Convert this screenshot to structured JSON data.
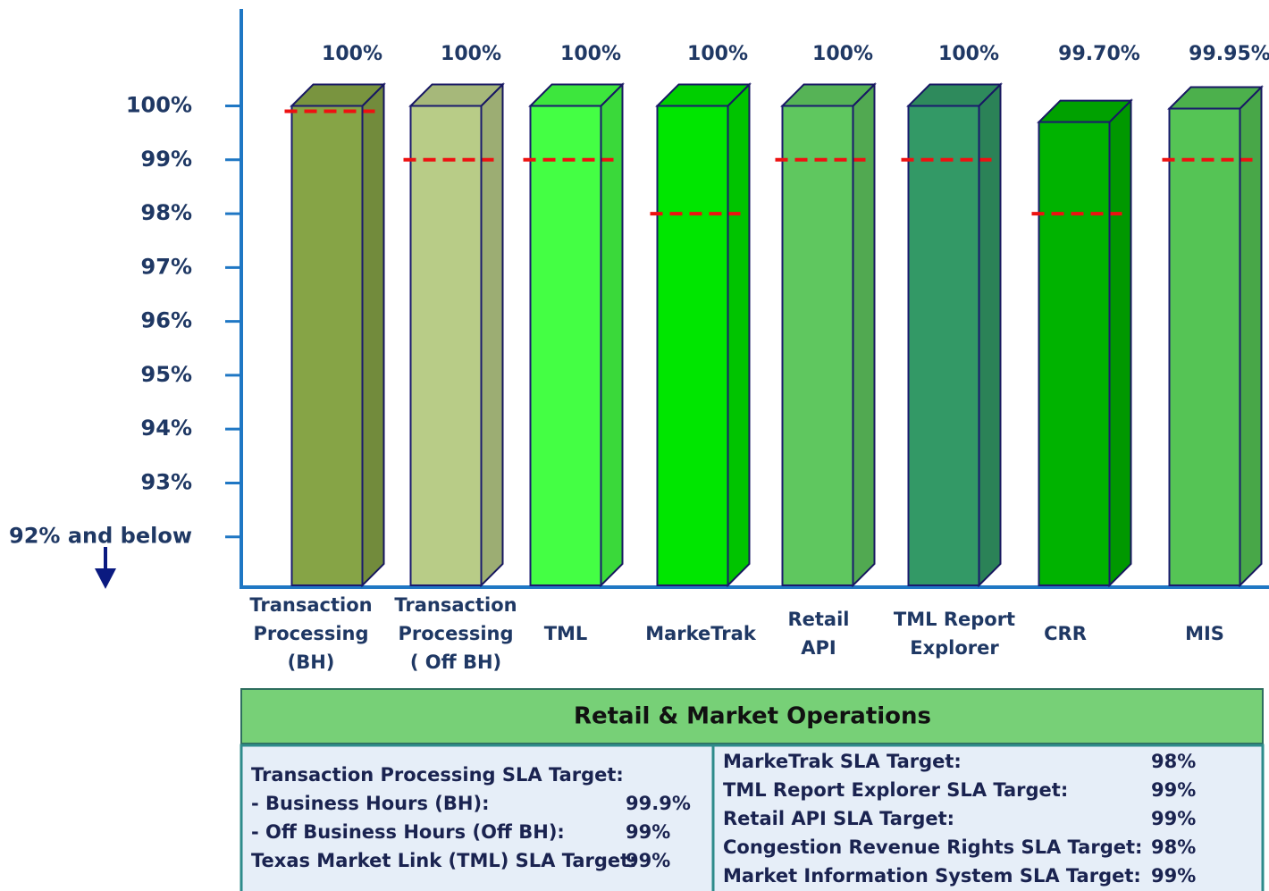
{
  "chart_data": {
    "type": "bar",
    "categories": [
      "Transaction\nProcessing\n(BH)",
      "Transaction\nProcessing\n( Off BH)",
      "TML",
      "MarkeTrak",
      "Retail\nAPI",
      "TML Report\nExplorer",
      "CRR",
      "MIS"
    ],
    "values": [
      100,
      100,
      100,
      100,
      100,
      100,
      99.7,
      99.95
    ],
    "value_labels": [
      "100%",
      "100%",
      "100%",
      "100%",
      "100%",
      "100%",
      "99.70%",
      "99.95%"
    ],
    "targets": [
      99.9,
      99,
      99,
      98,
      99,
      99,
      98,
      99
    ],
    "colors": [
      "#86a446",
      "#b8cc87",
      "#44ff44",
      "#00e600",
      "#5fc75f",
      "#339966",
      "#00b300",
      "#55c455"
    ],
    "target_color": "#ee1111",
    "ylim": [
      91.1,
      101.8
    ],
    "yticks": [
      {
        "value": 92,
        "label": "92% and below"
      },
      {
        "value": 93,
        "label": "93%"
      },
      {
        "value": 94,
        "label": "94%"
      },
      {
        "value": 95,
        "label": "95%"
      },
      {
        "value": 96,
        "label": "96%"
      },
      {
        "value": 97,
        "label": "97%"
      },
      {
        "value": 98,
        "label": "98%"
      },
      {
        "value": 99,
        "label": "99%"
      },
      {
        "value": 100,
        "label": "100%"
      }
    ]
  },
  "table": {
    "title": "Retail & Market Operations",
    "left": [
      [
        "Transaction Processing SLA Target:"
      ],
      [
        "-  Business Hours (BH):",
        "99.9%"
      ],
      [
        "-  Off Business Hours (Off BH):",
        "99%"
      ],
      [
        "Texas Market Link (TML) SLA Target:",
        "99%"
      ]
    ],
    "right": [
      [
        "MarkeTrak SLA Target:",
        "98%"
      ],
      [
        "TML Report Explorer SLA Target:",
        "99%"
      ],
      [
        "Retail API SLA Target:",
        "99%"
      ],
      [
        "Congestion Revenue Rights SLA Target:",
        "98%"
      ],
      [
        "Market Information System SLA Target:",
        "99%"
      ]
    ]
  }
}
